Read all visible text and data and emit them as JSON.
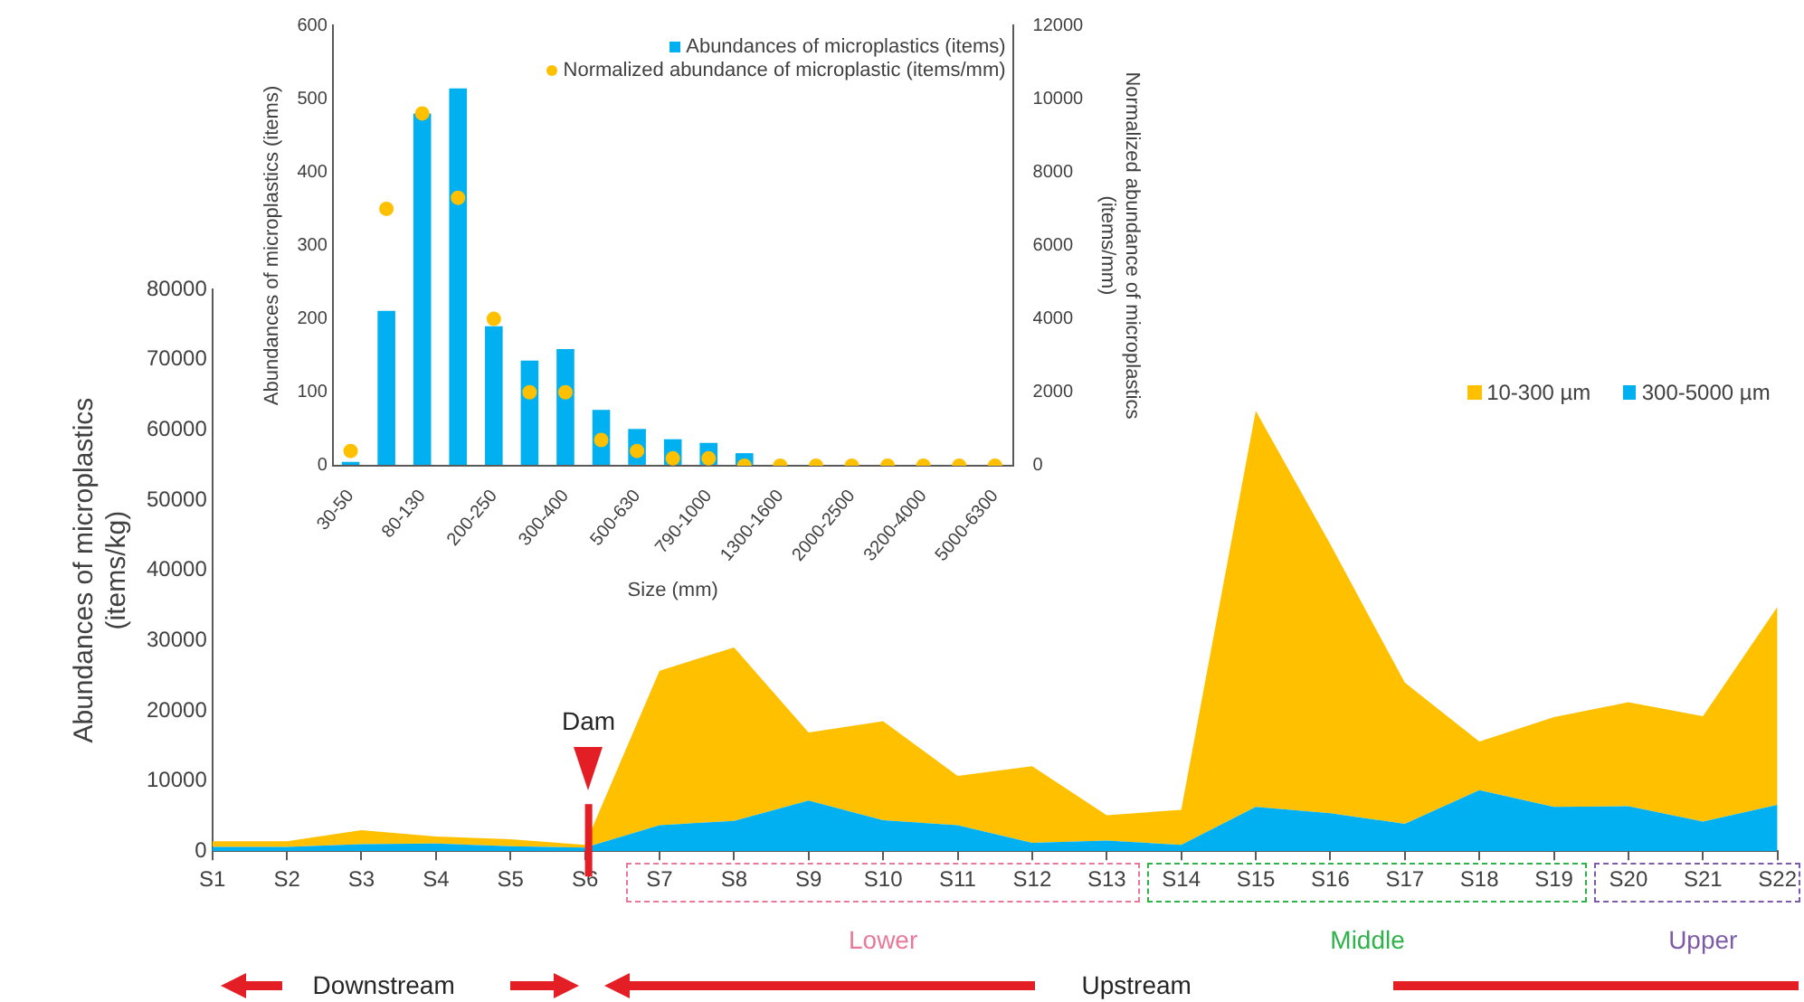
{
  "chart_data": [
    {
      "type": "area",
      "categories": [
        "S1",
        "S2",
        "S3",
        "S4",
        "S5",
        "S6",
        "S7",
        "S8",
        "S9",
        "S10",
        "S11",
        "S12",
        "S13",
        "S14",
        "S15",
        "S16",
        "S17",
        "S18",
        "S19",
        "S20",
        "S21",
        "S22"
      ],
      "series": [
        {
          "name": "300-5000 µm",
          "color": "#00b0f0",
          "values": [
            600,
            600,
            1000,
            1100,
            700,
            500,
            3700,
            4300,
            7200,
            4400,
            3700,
            1200,
            1500,
            900,
            6300,
            5400,
            3900,
            8700,
            6300,
            6400,
            4200,
            6600
          ]
        },
        {
          "name": "10-300 µm",
          "color": "#ffc000",
          "values": [
            800,
            800,
            2000,
            1000,
            1000,
            400,
            22000,
            24700,
            9700,
            14100,
            7000,
            10900,
            3600,
            5000,
            56400,
            38300,
            20100,
            6900,
            12800,
            14800,
            15000,
            28200
          ]
        }
      ],
      "stacked": true,
      "ylim": [
        0,
        80000
      ],
      "yticks": [
        0,
        10000,
        20000,
        30000,
        40000,
        50000,
        60000,
        70000,
        80000
      ],
      "ylabel": "Abundances of microplastics\n(items/kg)",
      "legend": "top right",
      "grid": false,
      "ref_lines": [
        {
          "axis": "x",
          "value": "S6",
          "label": "Dam",
          "color": "#e31e24"
        }
      ],
      "annotations": [
        "Lower",
        "Middle",
        "Upper",
        "Downstream",
        "Upstream"
      ]
    },
    {
      "type": "bar",
      "categories": [
        "30-50",
        null,
        "80-130",
        null,
        "200-250",
        null,
        "300-400",
        null,
        "500-630",
        null,
        "790-1000",
        null,
        "1300-1600",
        null,
        "2000-2500",
        null,
        "3200-4000",
        null,
        "5000-6300"
      ],
      "series": [
        {
          "name": "Abundances of microplastics (items)",
          "color": "#00b0f0",
          "values": [
            5,
            211,
            480,
            514,
            190,
            143,
            159,
            76,
            50,
            36,
            31,
            17,
            null,
            null,
            0,
            0,
            0,
            0,
            0
          ]
        },
        {
          "name": "Normalized abundance of microplastic (items/mm)",
          "type": "scatter",
          "axis": "y2",
          "color": "#ffc000",
          "values": [
            400,
            7000,
            9600,
            7300,
            4000,
            2000,
            2000,
            700,
            400,
            200,
            200,
            0,
            0,
            0,
            0,
            0,
            0,
            0,
            0
          ]
        }
      ],
      "ylim": [
        0,
        600
      ],
      "yticks": [
        0,
        100,
        200,
        300,
        400,
        500,
        600
      ],
      "y2lim": [
        0,
        12000
      ],
      "y2ticks": [
        0,
        2000,
        4000,
        6000,
        8000,
        10000,
        12000
      ],
      "xlabel": "Size (mm)",
      "ylabel": "Abundances of microplastics (items)",
      "y2label": "Normalized abundance of microplastics\n(items/mm)",
      "legend": "top right",
      "marker": "circle",
      "grid": false
    }
  ]
}
